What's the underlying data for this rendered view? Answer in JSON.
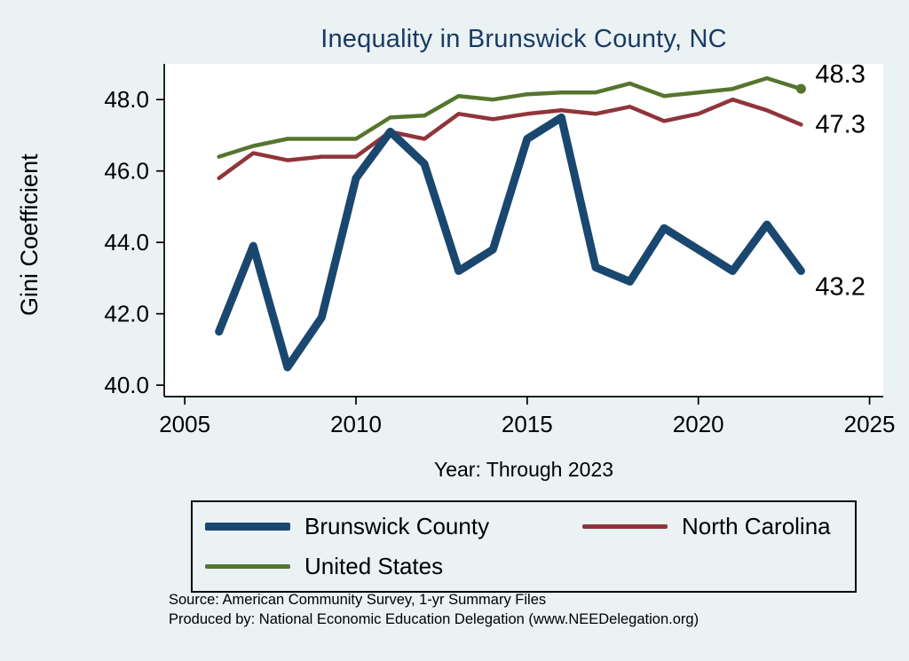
{
  "chart_data": {
    "type": "line",
    "title": "Inequality in Brunswick County, NC",
    "xlabel": "Year: Through 2023",
    "ylabel": "Gini Coefficient",
    "xlim": [
      2004.4,
      2025.4
    ],
    "ylim": [
      39.68,
      49.0
    ],
    "xticks": [
      2005,
      2010,
      2015,
      2020,
      2025
    ],
    "yticks": [
      40.0,
      42.0,
      44.0,
      46.0,
      48.0
    ],
    "grid": false,
    "legend_position": "bottom",
    "background_color": "#eaf2f3",
    "plot_background_color": "#ffffff",
    "title_color": "#1a3a64",
    "x": [
      2006,
      2007,
      2008,
      2009,
      2010,
      2011,
      2012,
      2013,
      2014,
      2015,
      2016,
      2017,
      2018,
      2019,
      2020,
      2021,
      2022,
      2023
    ],
    "series": [
      {
        "name": "Brunswick County",
        "color": "#1a476f",
        "line_width": 9,
        "end_label": "43.2",
        "values": [
          41.5,
          43.9,
          40.5,
          41.9,
          45.8,
          47.1,
          46.2,
          43.2,
          43.8,
          46.9,
          47.5,
          43.3,
          42.9,
          44.4,
          43.8,
          43.2,
          44.5,
          43.2
        ]
      },
      {
        "name": "North Carolina",
        "color": "#90353b",
        "line_width": 4.5,
        "end_label": "47.3",
        "values": [
          45.8,
          46.5,
          46.3,
          46.4,
          46.4,
          47.1,
          46.9,
          47.6,
          47.45,
          47.6,
          47.7,
          47.6,
          47.8,
          47.4,
          47.6,
          48.0,
          47.7,
          47.3
        ]
      },
      {
        "name": "United States",
        "color": "#55752f",
        "line_width": 4.5,
        "end_label": "48.3",
        "marker_on_last_point": true,
        "values": [
          46.4,
          46.7,
          46.9,
          46.9,
          46.9,
          47.5,
          47.55,
          48.1,
          48.0,
          48.15,
          48.2,
          48.2,
          48.45,
          48.1,
          48.2,
          48.3,
          48.6,
          48.3
        ]
      }
    ]
  },
  "notes": {
    "source": "Source: American Community Survey, 1-yr Summary Files",
    "produced_by": "Produced by: National Economic Education Delegation (www.NEEDelegation.org)"
  }
}
